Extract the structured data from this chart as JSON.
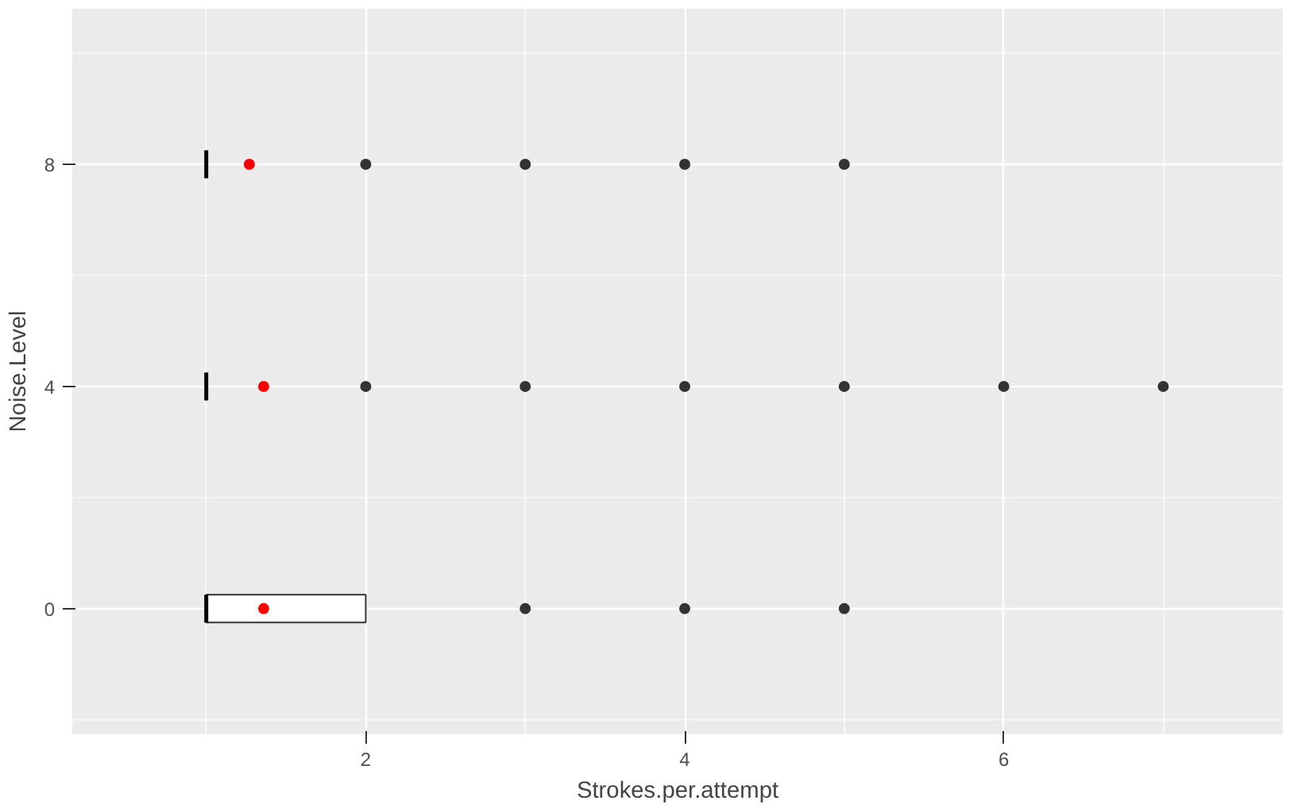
{
  "chart_data": {
    "type": "box",
    "orientation": "horizontal",
    "xlabel": "Strokes.per.attempt",
    "ylabel": "Noise.Level",
    "x": [
      0,
      4,
      8
    ],
    "boxes": [
      {
        "low": 1,
        "q1": 1,
        "median": 1,
        "q3": 2,
        "high": 2,
        "mean": 1.36,
        "outliers": [
          3,
          4,
          5
        ]
      },
      {
        "low": 1,
        "q1": 1,
        "median": 1,
        "q3": 1,
        "high": 1,
        "mean": 1.36,
        "outliers": [
          2,
          3,
          4,
          5,
          6,
          7
        ]
      },
      {
        "low": 1,
        "q1": 1,
        "median": 1,
        "q3": 1,
        "high": 1,
        "mean": 1.27,
        "outliers": [
          2,
          3,
          4,
          5
        ]
      }
    ],
    "xlim": [
      0.16,
      7.75
    ],
    "xticks": [
      2,
      4,
      6
    ],
    "ylim": [
      -2.26,
      10.8
    ],
    "yticks": [
      0,
      4,
      8
    ],
    "grid": true
  }
}
